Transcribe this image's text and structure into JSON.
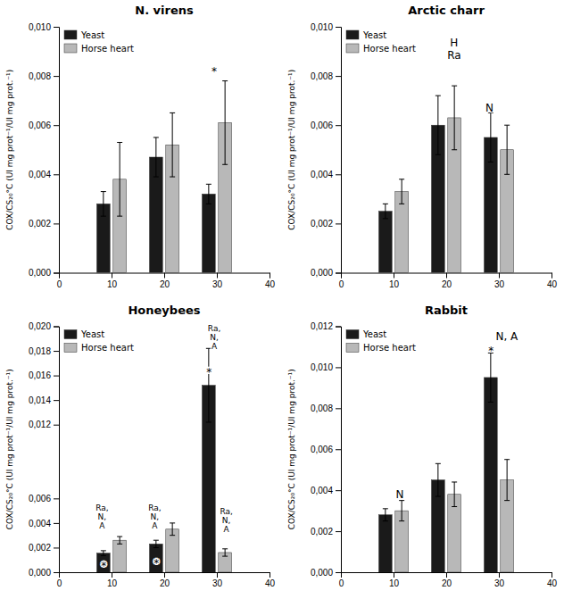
{
  "chart_data": [
    {
      "type": "bar",
      "title": "N. virens",
      "y_label": "COX/CS₂₀°C (UI mg prot⁻¹/UI mg prot.⁻¹)",
      "x": [
        10,
        20,
        30
      ],
      "xlim": [
        0,
        40
      ],
      "xticks": [
        0,
        10,
        20,
        30,
        40
      ],
      "ylim": [
        0,
        0.01
      ],
      "yticks": [
        {
          "value": 0.0,
          "label": "0,000"
        },
        {
          "value": 0.002,
          "label": "0,002"
        },
        {
          "value": 0.004,
          "label": "0,004"
        },
        {
          "value": 0.006,
          "label": "0,006"
        },
        {
          "value": 0.008,
          "label": "0,008"
        },
        {
          "value": 0.01,
          "label": "0,010"
        }
      ],
      "series": [
        {
          "name": "Yeast",
          "color": "#1a1a1a",
          "values": [
            0.0028,
            0.0047,
            0.0032
          ],
          "errors": [
            0.0005,
            0.0008,
            0.0004
          ]
        },
        {
          "name": "Horse heart",
          "color": "#b8b8b8",
          "values": [
            0.0038,
            0.0052,
            0.0061
          ],
          "errors": [
            0.0015,
            0.0013,
            0.0017
          ]
        }
      ],
      "legend": "upper left",
      "grid": false,
      "annotations": [
        {
          "text": "*",
          "x": 29.5,
          "y": 0.0082
        }
      ]
    },
    {
      "type": "bar",
      "title": "Arctic charr",
      "y_label": "COX/CS₂₀°C (UI mg prot⁻¹/UI mg prot.⁻¹)",
      "x": [
        10,
        20,
        30
      ],
      "xlim": [
        0,
        40
      ],
      "xticks": [
        0,
        10,
        20,
        30,
        40
      ],
      "ylim": [
        0,
        0.01
      ],
      "yticks": [
        {
          "value": 0.0,
          "label": "0,000"
        },
        {
          "value": 0.002,
          "label": "0,002"
        },
        {
          "value": 0.004,
          "label": "0,004"
        },
        {
          "value": 0.006,
          "label": "0,006"
        },
        {
          "value": 0.008,
          "label": "0,008"
        },
        {
          "value": 0.01,
          "label": "0,010"
        }
      ],
      "series": [
        {
          "name": "Yeast",
          "color": "#1a1a1a",
          "values": [
            0.0025,
            0.006,
            0.0055
          ],
          "errors": [
            0.0003,
            0.0012,
            0.001
          ]
        },
        {
          "name": "Horse heart",
          "color": "#b8b8b8",
          "values": [
            0.0033,
            0.0063,
            0.005
          ],
          "errors": [
            0.0005,
            0.0013,
            0.001
          ]
        }
      ],
      "legend": "upper left",
      "grid": false,
      "annotations": [
        {
          "text": "H\nRa",
          "x": 21.5,
          "y": 0.0091
        },
        {
          "text": "N",
          "x": 28.2,
          "y": 0.0067
        }
      ]
    },
    {
      "type": "bar",
      "title": "Honeybees",
      "y_label": "COX/CS₂₀°C (UI mg prot⁻¹/UI mg prot.⁻¹)",
      "x": [
        10,
        20,
        30
      ],
      "xlim": [
        0,
        40
      ],
      "xticks": [
        0,
        10,
        20,
        30,
        40
      ],
      "ylim": [
        0,
        0.02
      ],
      "yticks": [
        {
          "value": 0.0,
          "label": "0,000"
        },
        {
          "value": 0.002,
          "label": "0,002"
        },
        {
          "value": 0.004,
          "label": "0,004"
        },
        {
          "value": 0.006,
          "label": "0,006"
        },
        {
          "value": 0.012,
          "label": "0,012"
        },
        {
          "value": 0.014,
          "label": "0,014"
        },
        {
          "value": 0.016,
          "label": "0,016"
        },
        {
          "value": 0.018,
          "label": "0,018"
        },
        {
          "value": 0.02,
          "label": "0,020"
        }
      ],
      "series": [
        {
          "name": "Yeast",
          "color": "#1a1a1a",
          "values": [
            0.00155,
            0.0023,
            0.0152
          ],
          "errors": [
            0.0002,
            0.0003,
            0.003
          ]
        },
        {
          "name": "Horse heart",
          "color": "#b8b8b8",
          "values": [
            0.0026,
            0.0035,
            0.0016
          ],
          "errors": [
            0.0003,
            0.0005,
            0.0003
          ]
        }
      ],
      "legend": "upper left",
      "grid": false,
      "annotations": [
        {
          "text": "Ra,\nN,\nA",
          "x": 8.2,
          "y": 0.0045
        },
        {
          "text": "*",
          "x": 8.5,
          "y": 0.00055
        },
        {
          "text": "*",
          "x": 18.5,
          "y": 0.00075
        },
        {
          "text": "Ra,\nN,\nA",
          "x": 18.2,
          "y": 0.0045
        },
        {
          "text": "*",
          "x": 28.5,
          "y": 0.0163
        },
        {
          "text": "Ra,\nN,\nA",
          "x": 29.5,
          "y": 0.0191
        },
        {
          "text": "Ra,\nN,\nA",
          "x": 31.8,
          "y": 0.0042
        }
      ]
    },
    {
      "type": "bar",
      "title": "Rabbit",
      "y_label": "COX/CS₂₀°C (UI mg prot⁻¹/UI mg prot.⁻¹)",
      "x": [
        10,
        20,
        30
      ],
      "xlim": [
        0,
        40
      ],
      "xticks": [
        0,
        10,
        20,
        30,
        40
      ],
      "ylim": [
        0,
        0.012
      ],
      "yticks": [
        {
          "value": 0.0,
          "label": "0,000"
        },
        {
          "value": 0.002,
          "label": "0,002"
        },
        {
          "value": 0.004,
          "label": "0,004"
        },
        {
          "value": 0.006,
          "label": "0,006"
        },
        {
          "value": 0.008,
          "label": "0,008"
        },
        {
          "value": 0.01,
          "label": "0,010"
        },
        {
          "value": 0.012,
          "label": "0,012"
        }
      ],
      "series": [
        {
          "name": "Yeast",
          "color": "#1a1a1a",
          "values": [
            0.0028,
            0.0045,
            0.0095
          ],
          "errors": [
            0.0003,
            0.0008,
            0.0012
          ]
        },
        {
          "name": "Horse heart",
          "color": "#b8b8b8",
          "values": [
            0.003,
            0.0038,
            0.0045
          ],
          "errors": [
            0.0005,
            0.0006,
            0.001
          ]
        }
      ],
      "legend": "upper left",
      "grid": false,
      "annotations": [
        {
          "text": "N",
          "x": 11.2,
          "y": 0.0038
        },
        {
          "text": "*",
          "x": 28.5,
          "y": 0.0108
        },
        {
          "text": "N, A",
          "x": 31.5,
          "y": 0.0115
        }
      ]
    }
  ]
}
